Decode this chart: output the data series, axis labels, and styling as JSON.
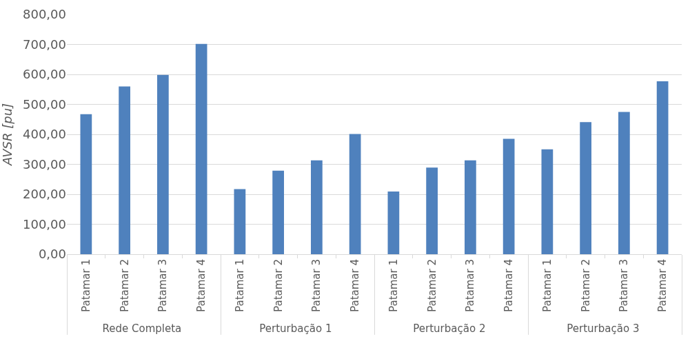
{
  "chart_data": {
    "type": "bar",
    "ylabel": "AVSR [pu]",
    "categories": [
      "Patamar 1",
      "Patamar 2",
      "Patamar 3",
      "Patamar 4",
      "Patamar 1",
      "Patamar 2",
      "Patamar 3",
      "Patamar 4",
      "Patamar 1",
      "Patamar 2",
      "Patamar 3",
      "Patamar 4",
      "Patamar 1",
      "Patamar 2",
      "Patamar 3",
      "Patamar 4"
    ],
    "annotations": [
      "Rede Completa",
      "Perturbação 1",
      "Perturbação 2",
      "Perturbação 3"
    ],
    "values": [
      467,
      560,
      598,
      702,
      217,
      279,
      313,
      401,
      209,
      289,
      313,
      385,
      350,
      441,
      475,
      577
    ],
    "color": "#4f81bd",
    "ylim": [
      0,
      800
    ],
    "yticks": [
      {
        "value": 0,
        "label": "0,00"
      },
      {
        "value": 100,
        "label": "100,00"
      },
      {
        "value": 200,
        "label": "200,00"
      },
      {
        "value": 300,
        "label": "300,00"
      },
      {
        "value": 400,
        "label": "400,00"
      },
      {
        "value": 500,
        "label": "500,00"
      },
      {
        "value": 600,
        "label": "600,00"
      },
      {
        "value": 700,
        "label": "700,00"
      },
      {
        "value": 800,
        "label": "800,00"
      }
    ],
    "grid": "y",
    "legend": false
  }
}
